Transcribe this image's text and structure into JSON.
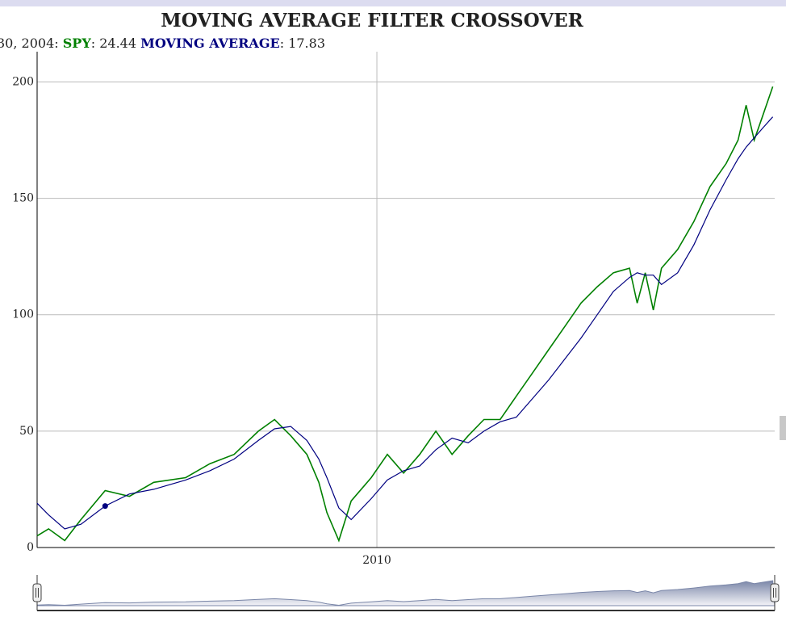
{
  "chart_data": {
    "type": "line",
    "title": "MOVING AVERAGE FILTER CROSSOVER",
    "highlight_label": "30, 2004",
    "highlight_index": 4,
    "x": [
      2002.86,
      2003.1,
      2003.44,
      2003.78,
      2004.29,
      2004.8,
      2005.31,
      2005.98,
      2006.49,
      2007.0,
      2007.51,
      2007.85,
      2008.19,
      2008.53,
      2008.78,
      2008.95,
      2009.2,
      2009.46,
      2009.88,
      2010.22,
      2010.56,
      2010.9,
      2011.24,
      2011.58,
      2011.92,
      2012.25,
      2012.59,
      2012.93,
      2013.27,
      2013.61,
      2013.95,
      2014.29,
      2014.63,
      2014.97,
      2015.31,
      2015.47,
      2015.64,
      2015.81,
      2015.98,
      2016.32,
      2016.66,
      2017.0,
      2017.34,
      2017.59,
      2017.76,
      2017.93,
      2018.1,
      2018.32
    ],
    "series": [
      {
        "name": "SPY",
        "color": "#008000",
        "values": [
          5,
          8,
          3,
          12,
          24.44,
          22,
          28,
          30,
          36,
          40,
          50,
          55,
          48,
          40,
          28,
          15,
          3,
          20,
          30,
          40,
          32,
          40,
          50,
          40,
          48,
          55,
          55,
          65,
          75,
          85,
          95,
          105,
          112,
          118,
          120,
          105,
          118,
          102,
          120,
          128,
          140,
          155,
          165,
          175,
          190,
          175,
          185,
          198
        ]
      },
      {
        "name": "MOVING AVERAGE",
        "color": "#000080",
        "values": [
          19,
          14,
          8,
          10,
          17.83,
          23,
          25,
          29,
          33,
          38,
          46,
          51,
          52,
          46,
          38,
          30,
          17,
          12,
          21,
          29,
          33,
          35,
          42,
          47,
          45,
          50,
          54,
          56,
          64,
          72,
          81,
          90,
          100,
          110,
          116,
          118,
          117,
          117,
          113,
          118,
          130,
          145,
          158,
          167,
          172,
          176,
          180,
          185
        ]
      }
    ],
    "xlim": [
      2002.86,
      2018.36
    ],
    "xticks": [
      2010
    ],
    "ylim": [
      0,
      213
    ],
    "yticks": [
      0,
      50,
      100,
      150,
      200
    ],
    "grid": true
  }
}
